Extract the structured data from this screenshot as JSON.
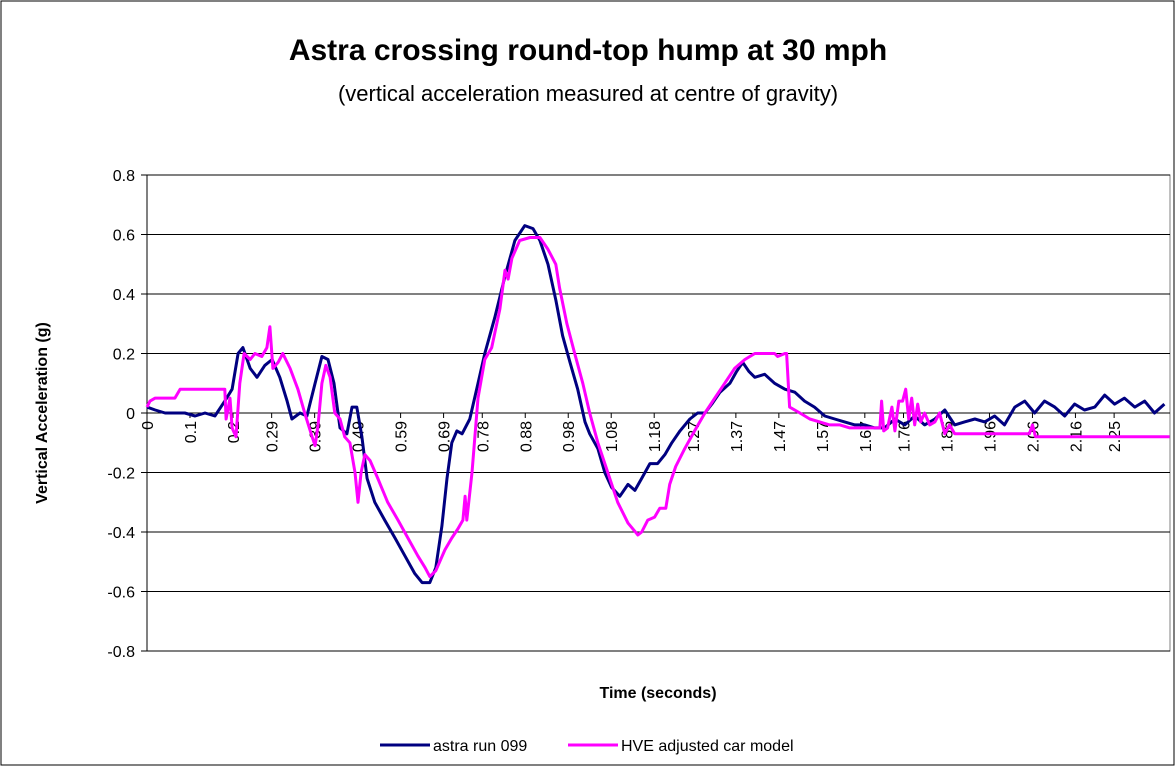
{
  "chart_data": {
    "type": "line",
    "title": "Astra crossing round-top hump at 30 mph",
    "subtitle": "(vertical acceleration measured at centre of gravity)",
    "x_label": "Time (seconds)",
    "y_label": "Vertical Acceleration (g)",
    "xlim": [
      0,
      2.38
    ],
    "ylim": [
      -0.8,
      0.8
    ],
    "xticks": [
      0,
      0.1,
      0.2,
      0.29,
      0.39,
      0.49,
      0.59,
      0.69,
      0.78,
      0.88,
      0.98,
      1.08,
      1.18,
      1.27,
      1.37,
      1.47,
      1.57,
      1.67,
      1.76,
      1.86,
      1.96,
      2.06,
      2.16,
      2.25
    ],
    "yticks": [
      -0.8,
      -0.6,
      -0.4,
      -0.2,
      0,
      0.2,
      0.4,
      0.6,
      0.8
    ],
    "grid": true,
    "legend": "bottom",
    "series": [
      {
        "name": "astra run 099",
        "color": "#000080",
        "x": [
          0,
          0.019,
          0.042,
          0.065,
          0.088,
          0.112,
          0.135,
          0.158,
          0.181,
          0.198,
          0.212,
          0.223,
          0.24,
          0.256,
          0.274,
          0.291,
          0.309,
          0.326,
          0.337,
          0.356,
          0.372,
          0.391,
          0.407,
          0.421,
          0.435,
          0.449,
          0.465,
          0.477,
          0.488,
          0.5,
          0.512,
          0.53,
          0.553,
          0.577,
          0.6,
          0.623,
          0.64,
          0.658,
          0.672,
          0.686,
          0.698,
          0.709,
          0.721,
          0.733,
          0.751,
          0.77,
          0.786,
          0.809,
          0.833,
          0.856,
          0.879,
          0.898,
          0.914,
          0.933,
          0.951,
          0.967,
          0.984,
          1.002,
          1.019,
          1.03,
          1.049,
          1.065,
          1.081,
          1.1,
          1.119,
          1.135,
          1.151,
          1.17,
          1.188,
          1.205,
          1.221,
          1.24,
          1.263,
          1.281,
          1.298,
          1.314,
          1.333,
          1.356,
          1.372,
          1.386,
          1.4,
          1.414,
          1.437,
          1.46,
          1.484,
          1.507,
          1.53,
          1.553,
          1.577,
          1.6,
          1.623,
          1.647,
          1.67,
          1.693,
          1.716,
          1.74,
          1.763,
          1.786,
          1.809,
          1.833,
          1.856,
          1.879,
          1.902,
          1.926,
          1.949,
          1.972,
          1.995,
          2.019,
          2.042,
          2.065,
          2.088,
          2.112,
          2.135,
          2.158,
          2.181,
          2.205,
          2.228,
          2.251,
          2.274,
          2.298,
          2.321,
          2.344,
          2.367
        ],
        "values": [
          0.02,
          0.01,
          0.0,
          0.0,
          0.0,
          -0.01,
          0.0,
          -0.01,
          0.04,
          0.08,
          0.2,
          0.22,
          0.15,
          0.12,
          0.16,
          0.18,
          0.12,
          0.04,
          -0.02,
          0.0,
          -0.01,
          0.1,
          0.19,
          0.18,
          0.1,
          -0.05,
          -0.07,
          0.02,
          0.02,
          -0.08,
          -0.22,
          -0.3,
          -0.36,
          -0.42,
          -0.48,
          -0.54,
          -0.57,
          -0.57,
          -0.52,
          -0.38,
          -0.22,
          -0.1,
          -0.06,
          -0.07,
          -0.02,
          0.1,
          0.2,
          0.32,
          0.46,
          0.58,
          0.63,
          0.62,
          0.58,
          0.5,
          0.38,
          0.26,
          0.17,
          0.08,
          -0.03,
          -0.07,
          -0.12,
          -0.2,
          -0.25,
          -0.28,
          -0.24,
          -0.26,
          -0.22,
          -0.17,
          -0.17,
          -0.14,
          -0.1,
          -0.06,
          -0.02,
          0.0,
          0.0,
          0.03,
          0.07,
          0.1,
          0.14,
          0.17,
          0.14,
          0.12,
          0.13,
          0.1,
          0.08,
          0.07,
          0.04,
          0.02,
          -0.01,
          -0.02,
          -0.03,
          -0.04,
          -0.04,
          -0.05,
          -0.05,
          -0.02,
          -0.04,
          -0.01,
          -0.04,
          -0.02,
          0.01,
          -0.04,
          -0.03,
          -0.02,
          -0.03,
          -0.01,
          -0.04,
          0.02,
          0.04,
          0.0,
          0.04,
          0.02,
          -0.01,
          0.03,
          0.01,
          0.02,
          0.06,
          0.03,
          0.05,
          0.02,
          0.04,
          0.0,
          0.03
        ]
      },
      {
        "name": "HVE adjusted car model",
        "color": "#ff00ff",
        "x": [
          0,
          0.007,
          0.019,
          0.065,
          0.077,
          0.181,
          0.184,
          0.193,
          0.198,
          0.207,
          0.216,
          0.226,
          0.24,
          0.251,
          0.267,
          0.279,
          0.286,
          0.293,
          0.305,
          0.316,
          0.333,
          0.351,
          0.367,
          0.384,
          0.391,
          0.398,
          0.407,
          0.416,
          0.426,
          0.437,
          0.449,
          0.46,
          0.472,
          0.484,
          0.491,
          0.498,
          0.507,
          0.519,
          0.537,
          0.56,
          0.584,
          0.607,
          0.63,
          0.647,
          0.658,
          0.672,
          0.693,
          0.709,
          0.723,
          0.735,
          0.74,
          0.744,
          0.756,
          0.77,
          0.786,
          0.802,
          0.821,
          0.833,
          0.84,
          0.849,
          0.867,
          0.891,
          0.914,
          0.933,
          0.951,
          0.96,
          0.977,
          0.995,
          1.014,
          1.03,
          1.049,
          1.072,
          1.095,
          1.119,
          1.142,
          1.151,
          1.165,
          1.181,
          1.193,
          1.207,
          1.216,
          1.23,
          1.251,
          1.274,
          1.298,
          1.321,
          1.344,
          1.367,
          1.391,
          1.414,
          1.437,
          1.46,
          1.467,
          1.484,
          1.488,
          1.495,
          1.519,
          1.542,
          1.565,
          1.588,
          1.612,
          1.635,
          1.681,
          1.705,
          1.709,
          1.714,
          1.723,
          1.733,
          1.74,
          1.749,
          1.758,
          1.765,
          1.772,
          1.779,
          1.786,
          1.793,
          1.8,
          1.809,
          1.821,
          1.833,
          1.844,
          1.856,
          1.867,
          1.879,
          1.891,
          1.937,
          1.984,
          2.03,
          2.053,
          2.06,
          2.067,
          2.1,
          2.379
        ],
        "values": [
          0.02,
          0.04,
          0.05,
          0.05,
          0.08,
          0.08,
          -0.02,
          0.05,
          -0.05,
          -0.08,
          0.1,
          0.2,
          0.18,
          0.2,
          0.19,
          0.22,
          0.29,
          0.15,
          0.17,
          0.2,
          0.15,
          0.08,
          0.0,
          -0.08,
          -0.11,
          -0.04,
          0.1,
          0.16,
          0.12,
          0.0,
          -0.02,
          -0.08,
          -0.1,
          -0.2,
          -0.3,
          -0.2,
          -0.14,
          -0.16,
          -0.22,
          -0.3,
          -0.36,
          -0.42,
          -0.48,
          -0.52,
          -0.55,
          -0.53,
          -0.46,
          -0.42,
          -0.39,
          -0.36,
          -0.28,
          -0.36,
          -0.2,
          0.05,
          0.18,
          0.22,
          0.35,
          0.48,
          0.45,
          0.52,
          0.58,
          0.59,
          0.59,
          0.55,
          0.5,
          0.42,
          0.3,
          0.2,
          0.1,
          0.0,
          -0.1,
          -0.2,
          -0.3,
          -0.37,
          -0.41,
          -0.4,
          -0.36,
          -0.35,
          -0.32,
          -0.32,
          -0.24,
          -0.18,
          -0.12,
          -0.06,
          0.0,
          0.05,
          0.1,
          0.15,
          0.18,
          0.2,
          0.2,
          0.2,
          0.19,
          0.2,
          0.2,
          0.02,
          0.0,
          -0.02,
          -0.03,
          -0.04,
          -0.04,
          -0.05,
          -0.05,
          -0.05,
          0.04,
          -0.06,
          -0.05,
          0.02,
          -0.06,
          0.04,
          0.04,
          0.08,
          -0.02,
          0.05,
          -0.04,
          0.03,
          -0.03,
          0.0,
          -0.04,
          -0.03,
          0.0,
          -0.07,
          -0.04,
          -0.07,
          -0.07,
          -0.07,
          -0.07,
          -0.07,
          -0.07,
          -0.04,
          -0.08,
          -0.08,
          -0.08
        ]
      }
    ]
  }
}
